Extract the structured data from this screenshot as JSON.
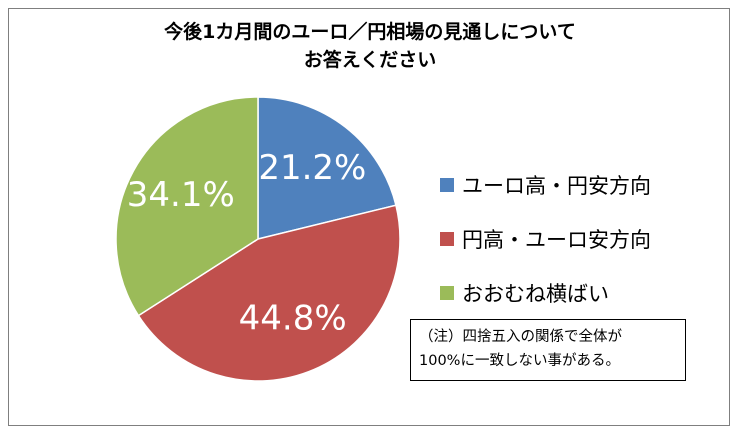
{
  "title_lines": [
    "今後1カ月間のユーロ／円相場の見通しについて",
    "お答えください"
  ],
  "chart_data": {
    "type": "pie",
    "title": "今後1カ月間のユーロ／円相場の見通しについて お答えください",
    "categories": [
      "ユーロ高・円安方向",
      "円高・ユーロ安方向",
      "おおむね横ばい"
    ],
    "values": [
      21.2,
      44.8,
      34.1
    ],
    "labels": [
      "21.2%",
      "44.8%",
      "34.1%"
    ],
    "colors": [
      "#4f81bd",
      "#c0504d",
      "#9bbb59"
    ],
    "legend_position": "right"
  },
  "note_lines": [
    "（注）四捨五入の関係で全体が",
    "100%に一致しない事がある。"
  ]
}
